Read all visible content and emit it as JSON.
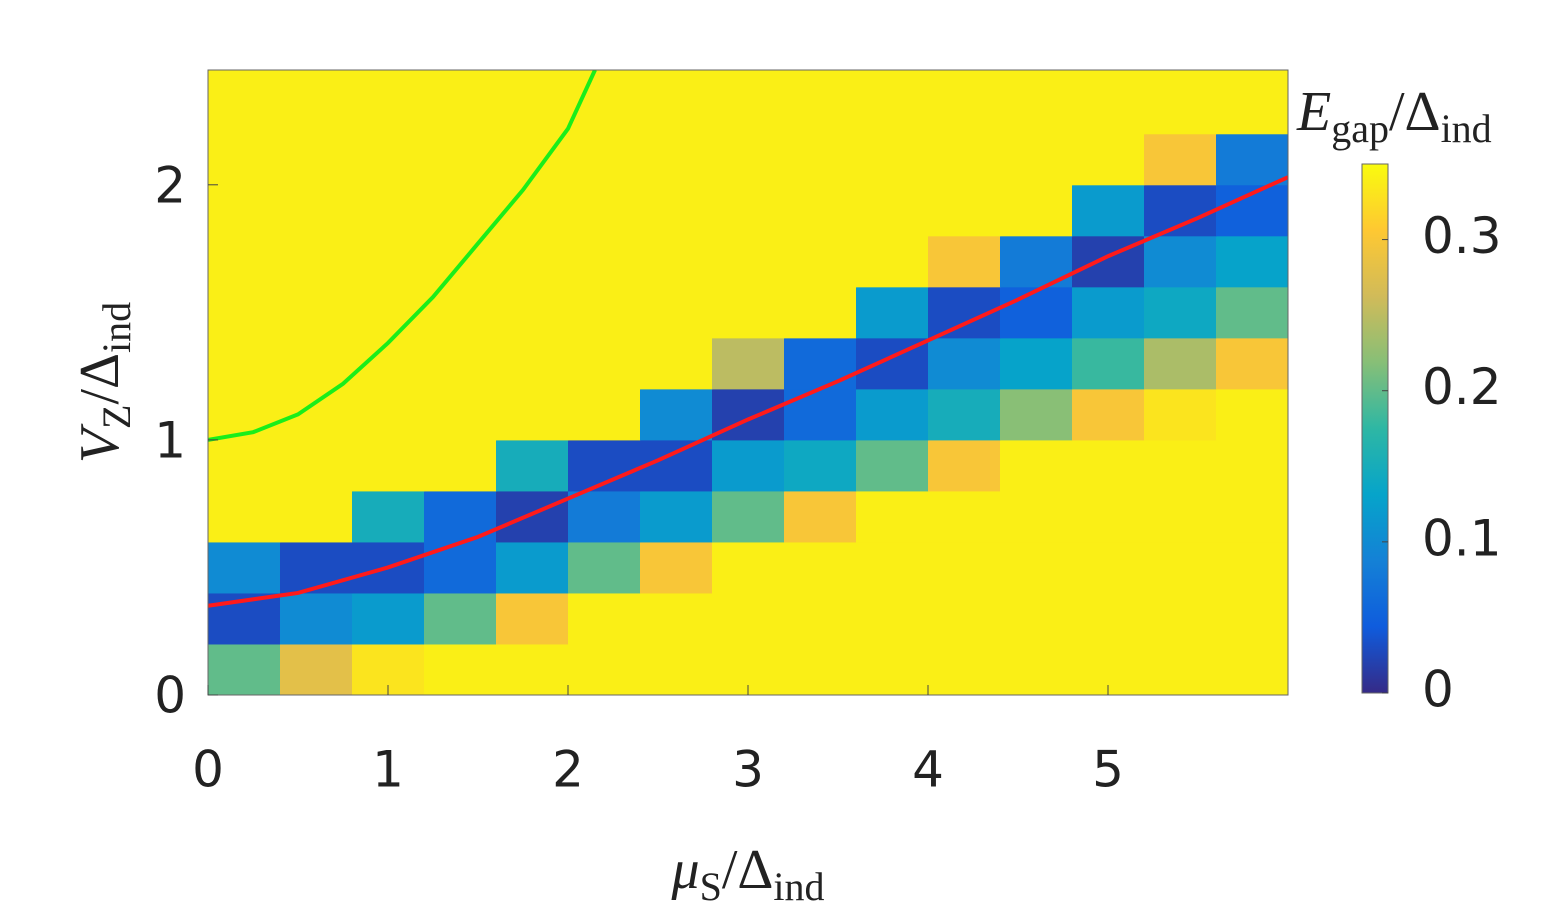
{
  "chart_data": {
    "type": "heatmap",
    "xbins": [
      0,
      0.4,
      0.8,
      1.2,
      1.6,
      2.0,
      2.4,
      2.8,
      3.2,
      3.6,
      4.0,
      4.4,
      4.8,
      5.2,
      5.6,
      6.0
    ],
    "ybins": [
      0,
      0.2,
      0.4,
      0.6,
      0.8,
      1.0,
      1.2,
      1.4,
      1.6,
      1.8,
      2.0,
      2.2,
      2.45
    ],
    "z": [
      [
        0.2,
        0.28,
        0.33,
        0.34,
        0.34,
        0.34,
        0.34,
        0.34,
        0.34,
        0.34,
        0.34,
        0.34,
        0.34,
        0.34,
        0.34
      ],
      [
        0.03,
        0.1,
        0.12,
        0.2,
        0.3,
        0.34,
        0.34,
        0.34,
        0.34,
        0.34,
        0.34,
        0.34,
        0.34,
        0.34,
        0.34
      ],
      [
        0.1,
        0.03,
        0.03,
        0.06,
        0.12,
        0.2,
        0.3,
        0.34,
        0.34,
        0.34,
        0.34,
        0.34,
        0.34,
        0.34,
        0.34
      ],
      [
        0.34,
        0.34,
        0.15,
        0.06,
        0.02,
        0.08,
        0.12,
        0.2,
        0.3,
        0.34,
        0.34,
        0.34,
        0.34,
        0.34,
        0.34
      ],
      [
        0.34,
        0.34,
        0.34,
        0.34,
        0.15,
        0.03,
        0.03,
        0.12,
        0.14,
        0.2,
        0.3,
        0.34,
        0.34,
        0.34,
        0.34
      ],
      [
        0.34,
        0.34,
        0.34,
        0.34,
        0.34,
        0.34,
        0.1,
        0.02,
        0.06,
        0.12,
        0.15,
        0.22,
        0.3,
        0.33,
        0.34
      ],
      [
        0.34,
        0.34,
        0.34,
        0.34,
        0.34,
        0.34,
        0.34,
        0.25,
        0.06,
        0.03,
        0.1,
        0.13,
        0.18,
        0.24,
        0.3
      ],
      [
        0.34,
        0.34,
        0.34,
        0.34,
        0.34,
        0.34,
        0.34,
        0.34,
        0.34,
        0.12,
        0.03,
        0.05,
        0.12,
        0.14,
        0.2
      ],
      [
        0.34,
        0.34,
        0.34,
        0.34,
        0.34,
        0.34,
        0.34,
        0.34,
        0.34,
        0.34,
        0.3,
        0.08,
        0.02,
        0.1,
        0.13
      ],
      [
        0.34,
        0.34,
        0.34,
        0.34,
        0.34,
        0.34,
        0.34,
        0.34,
        0.34,
        0.34,
        0.34,
        0.34,
        0.12,
        0.03,
        0.05
      ],
      [
        0.34,
        0.34,
        0.34,
        0.34,
        0.34,
        0.34,
        0.34,
        0.34,
        0.34,
        0.34,
        0.34,
        0.34,
        0.34,
        0.3,
        0.08
      ],
      [
        0.34,
        0.34,
        0.34,
        0.34,
        0.34,
        0.34,
        0.34,
        0.34,
        0.34,
        0.34,
        0.34,
        0.34,
        0.34,
        0.34,
        0.34
      ]
    ],
    "colorscale": [
      "#352a87",
      "#0f5cdd",
      "#1481d6",
      "#06a4ca",
      "#2eb7a4",
      "#87bf77",
      "#d1bb59",
      "#fec832",
      "#f9fb0e"
    ],
    "clim": [
      0,
      0.35
    ],
    "cticks": [
      0,
      0.1,
      0.2,
      0.3
    ],
    "clabel": [
      {
        "text": "E",
        "italic": true
      },
      {
        "text": "gap",
        "sub": true
      },
      {
        "text": "/Δ"
      },
      {
        "text": "ind",
        "sub": true
      }
    ],
    "series": [
      {
        "color": "#ff1a1a",
        "x": [
          0,
          0.5,
          1,
          1.5,
          2,
          2.5,
          3,
          3.5,
          4,
          4.5,
          5,
          5.5,
          6
        ],
        "y": [
          0.35,
          0.4,
          0.5,
          0.62,
          0.77,
          0.92,
          1.08,
          1.23,
          1.39,
          1.55,
          1.72,
          1.87,
          2.03
        ]
      },
      {
        "color": "#1aee1a",
        "x": [
          0,
          0.25,
          0.5,
          0.75,
          1,
          1.25,
          1.5,
          1.75,
          2,
          2.15
        ],
        "y": [
          1.0,
          1.03,
          1.1,
          1.22,
          1.38,
          1.56,
          1.77,
          1.98,
          2.22,
          2.45
        ]
      }
    ],
    "xlim": [
      0,
      6
    ],
    "xticks": [
      0,
      1,
      2,
      3,
      4,
      5
    ],
    "ylim": [
      0,
      2.45
    ],
    "yticks": [
      0,
      1,
      2
    ],
    "xlabel": [
      {
        "text": "μ",
        "italic": true
      },
      {
        "text": "S",
        "sub": true
      },
      {
        "text": "/Δ"
      },
      {
        "text": "ind",
        "sub": true
      }
    ],
    "ylabel": [
      {
        "text": "V",
        "italic": true
      },
      {
        "text": "Z",
        "sub": true
      },
      {
        "text": "/Δ"
      },
      {
        "text": "ind",
        "sub": true
      }
    ]
  }
}
